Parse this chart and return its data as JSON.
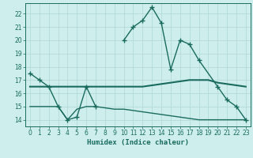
{
  "seg1_x": [
    0,
    1,
    2,
    3,
    4,
    5,
    6,
    7
  ],
  "seg1_y": [
    17.5,
    17.0,
    16.5,
    15.0,
    14.0,
    14.2,
    16.5,
    15.0
  ],
  "seg2_x": [
    10,
    11,
    12,
    13,
    14,
    15,
    16,
    17,
    18,
    20,
    21,
    22,
    23
  ],
  "seg2_y": [
    20.0,
    21.0,
    21.5,
    22.5,
    21.3,
    17.8,
    20.0,
    19.7,
    18.5,
    16.5,
    15.5,
    15.0,
    14.0
  ],
  "line2_x": [
    0,
    1,
    2,
    3,
    4,
    5,
    6,
    7,
    8,
    9,
    10,
    11,
    12,
    13,
    14,
    15,
    16,
    17,
    18,
    19,
    20,
    21,
    22,
    23
  ],
  "line2_y": [
    16.5,
    16.5,
    16.5,
    16.5,
    16.5,
    16.5,
    16.5,
    16.5,
    16.5,
    16.5,
    16.5,
    16.5,
    16.5,
    16.6,
    16.7,
    16.8,
    16.9,
    17.0,
    17.0,
    17.0,
    16.8,
    16.7,
    16.6,
    16.5
  ],
  "line3_x": [
    0,
    1,
    2,
    3,
    4,
    5,
    6,
    7,
    8,
    9,
    10,
    11,
    12,
    13,
    14,
    15,
    16,
    17,
    18,
    19,
    20,
    21,
    22,
    23
  ],
  "line3_y": [
    15.0,
    15.0,
    15.0,
    15.0,
    14.0,
    14.8,
    15.0,
    15.0,
    14.9,
    14.8,
    14.8,
    14.7,
    14.6,
    14.5,
    14.4,
    14.3,
    14.2,
    14.1,
    14.0,
    14.0,
    14.0,
    14.0,
    14.0,
    14.0
  ],
  "xlim": [
    -0.5,
    23.5
  ],
  "ylim": [
    13.5,
    22.8
  ],
  "yticks": [
    14,
    15,
    16,
    17,
    18,
    19,
    20,
    21,
    22
  ],
  "xticks": [
    0,
    1,
    2,
    3,
    4,
    5,
    6,
    7,
    8,
    9,
    10,
    11,
    12,
    13,
    14,
    15,
    16,
    17,
    18,
    19,
    20,
    21,
    22,
    23
  ],
  "xlabel": "Humidex (Indice chaleur)",
  "line_color": "#1a6b5e",
  "bg_color": "#cdeeed",
  "grid_color": "#b0d8d4",
  "marker": "+"
}
